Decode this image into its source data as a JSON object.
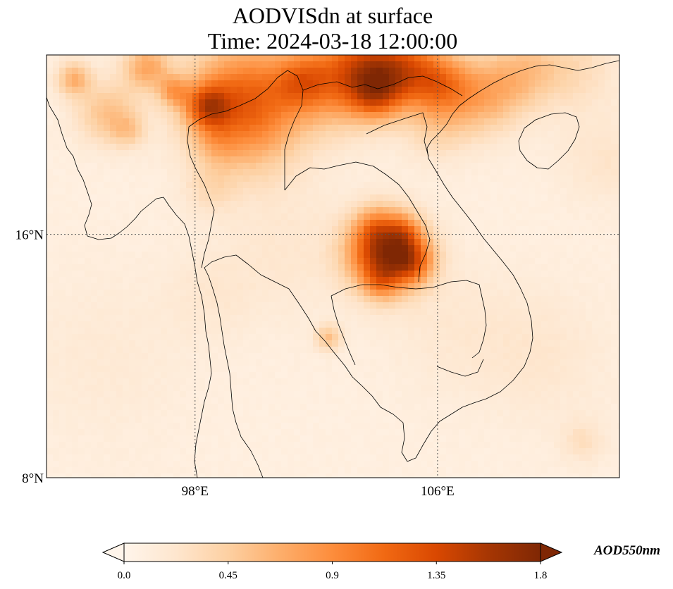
{
  "title": {
    "line1": "AODVISdn at surface",
    "line2": "Time: 2024-03-18 12:00:00"
  },
  "map": {
    "projection": "PlateCarree",
    "lon_range": [
      93.1,
      112.0
    ],
    "lat_range": [
      8,
      21.9
    ],
    "gridlines": "dotted",
    "lat_ticks": [
      {
        "value": 16,
        "label": "16°N"
      },
      {
        "value": 8,
        "label": "8°N"
      }
    ],
    "lon_ticks": [
      {
        "value": 98,
        "label": "98°E"
      },
      {
        "value": 106,
        "label": "106°E"
      }
    ],
    "hotspots": [
      {
        "lon": 104.3,
        "lat": 15.4,
        "r": 0.85,
        "v": 1.55
      },
      {
        "lon": 105.2,
        "lat": 15.1,
        "r": 0.5,
        "v": 0.6
      },
      {
        "lon": 104.1,
        "lat": 14.4,
        "r": 0.4,
        "v": 0.35
      },
      {
        "lon": 103.9,
        "lat": 16.3,
        "r": 0.45,
        "v": 0.3
      },
      {
        "lon": 104.9,
        "lat": 16.1,
        "r": 0.4,
        "v": 0.35
      },
      {
        "lon": 102.4,
        "lat": 12.6,
        "r": 0.3,
        "v": 0.45
      },
      {
        "lon": 99.6,
        "lat": 20.4,
        "r": 1.3,
        "v": 1.05
      },
      {
        "lon": 98.4,
        "lat": 20.2,
        "r": 0.5,
        "v": 0.8
      },
      {
        "lon": 97.3,
        "lat": 20.7,
        "r": 0.35,
        "v": 0.5
      },
      {
        "lon": 98.7,
        "lat": 19.0,
        "r": 0.5,
        "v": 0.2
      },
      {
        "lon": 98.5,
        "lat": 17.5,
        "r": 0.6,
        "v": 0.2
      },
      {
        "lon": 96.4,
        "lat": 21.5,
        "r": 0.55,
        "v": 0.6
      },
      {
        "lon": 94.0,
        "lat": 21.1,
        "r": 0.4,
        "v": 0.55
      },
      {
        "lon": 95.1,
        "lat": 20.0,
        "r": 0.7,
        "v": 0.45
      },
      {
        "lon": 95.8,
        "lat": 19.4,
        "r": 0.4,
        "v": 0.3
      },
      {
        "lon": 101.5,
        "lat": 21.0,
        "r": 0.6,
        "v": 0.45
      },
      {
        "lon": 102.6,
        "lat": 21.1,
        "r": 1.1,
        "v": 0.75
      },
      {
        "lon": 103.9,
        "lat": 21.5,
        "r": 0.9,
        "v": 0.85
      },
      {
        "lon": 104.0,
        "lat": 20.6,
        "r": 0.6,
        "v": 0.65
      },
      {
        "lon": 105.2,
        "lat": 21.4,
        "r": 0.8,
        "v": 0.75
      },
      {
        "lon": 106.2,
        "lat": 20.9,
        "r": 0.7,
        "v": 0.6
      },
      {
        "lon": 107.6,
        "lat": 20.6,
        "r": 0.9,
        "v": 0.55
      },
      {
        "lon": 108.9,
        "lat": 21.4,
        "r": 0.8,
        "v": 0.35
      },
      {
        "lon": 110.5,
        "lat": 21.5,
        "r": 1.0,
        "v": 0.25
      },
      {
        "lon": 106.0,
        "lat": 19.6,
        "r": 0.8,
        "v": 0.3
      },
      {
        "lon": 100.0,
        "lat": 19.0,
        "r": 1.2,
        "v": 0.15
      },
      {
        "lon": 111.5,
        "lat": 18.5,
        "r": 1.0,
        "v": 0.15
      },
      {
        "lon": 101.0,
        "lat": 15.5,
        "r": 1.5,
        "v": 0.12
      },
      {
        "lon": 98.5,
        "lat": 14.0,
        "r": 1.0,
        "v": 0.1
      },
      {
        "lon": 110.8,
        "lat": 9.2,
        "r": 0.5,
        "v": 0.2
      },
      {
        "lon": 95.0,
        "lat": 12.0,
        "r": 2.0,
        "v": 0.08
      },
      {
        "lon": 106.5,
        "lat": 13.0,
        "r": 1.5,
        "v": 0.1
      },
      {
        "lon": 109.5,
        "lat": 12.0,
        "r": 1.5,
        "v": 0.12
      }
    ]
  },
  "colorbar": {
    "label": "AOD550nm",
    "min": 0.0,
    "max": 1.8,
    "extend": "both",
    "colors": [
      "#fff5eb",
      "#fee6ce",
      "#fdd0a2",
      "#fdae6b",
      "#fd8d3c",
      "#f16913",
      "#d94801",
      "#a63603",
      "#7f2704"
    ],
    "ticks": [
      "0.0",
      "0.45",
      "0.9",
      "1.35",
      "1.8"
    ]
  }
}
